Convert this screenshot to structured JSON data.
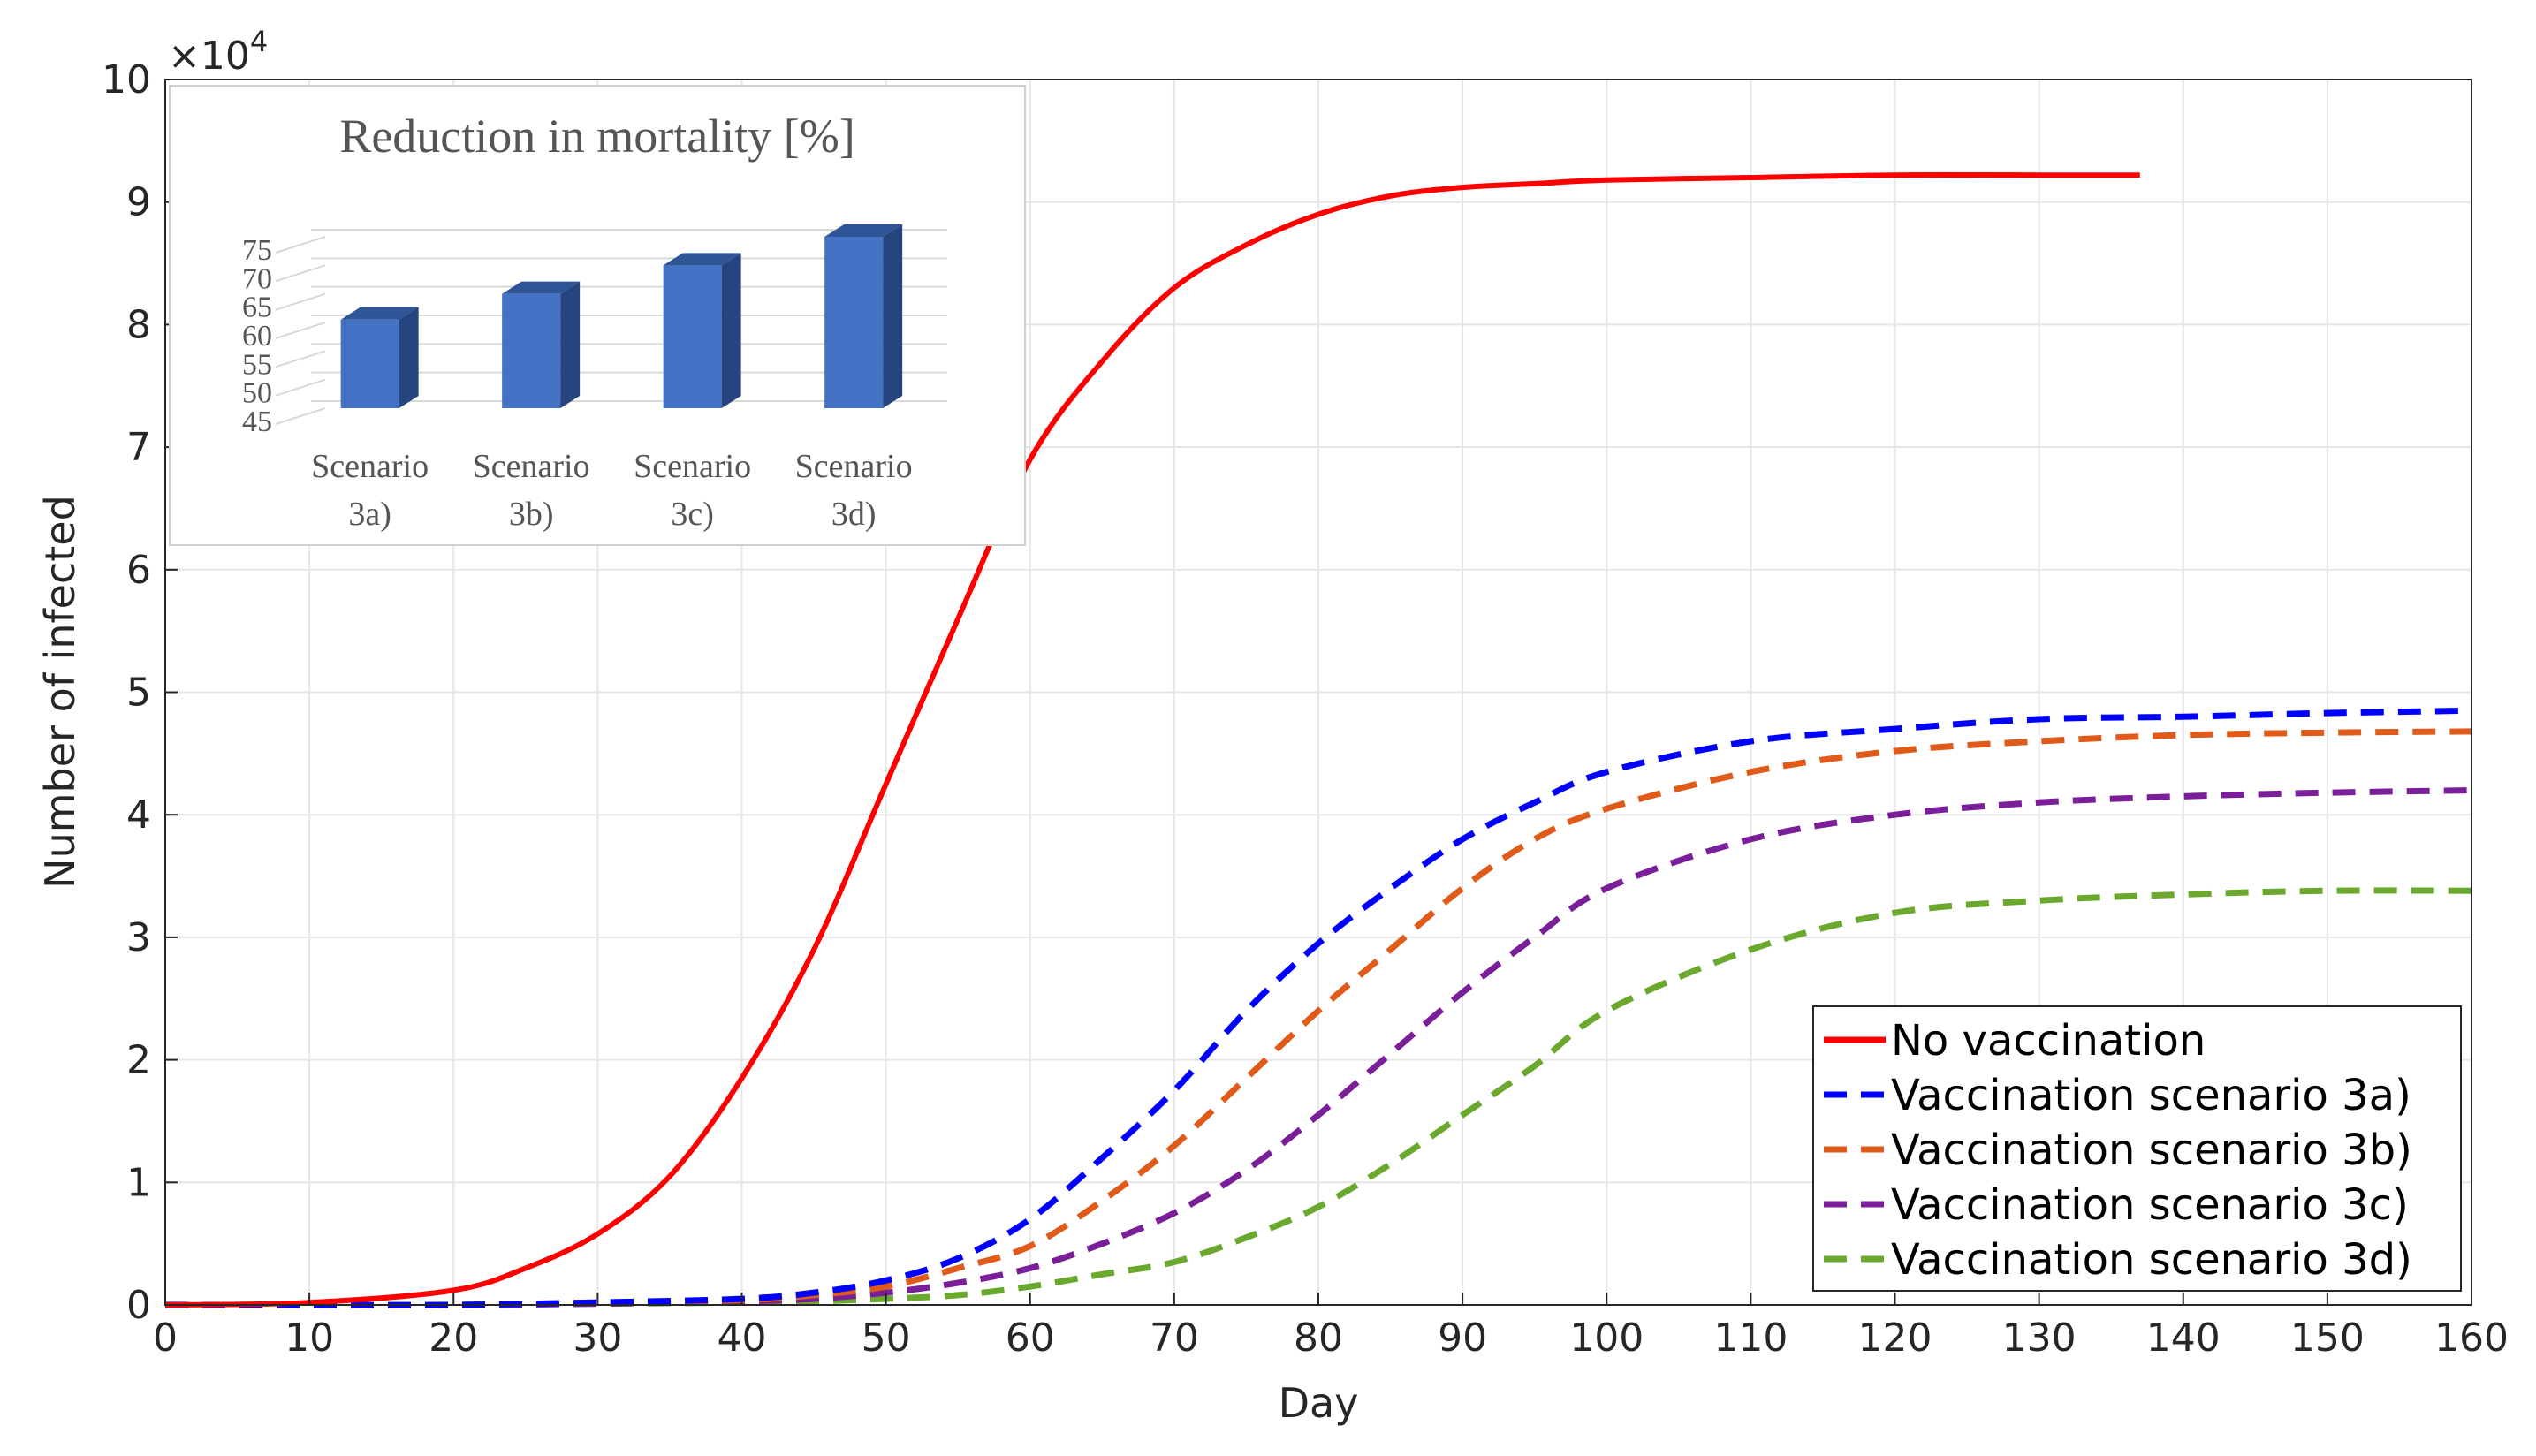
{
  "chart_data": [
    {
      "type": "line",
      "xlabel": "Day",
      "ylabel": "Number of infected",
      "y_exponent_label": "×10",
      "y_exponent_power": "4",
      "xlim": [
        0,
        160
      ],
      "ylim": [
        0,
        10
      ],
      "x_ticks": [
        "0",
        "10",
        "20",
        "30",
        "40",
        "50",
        "60",
        "70",
        "80",
        "90",
        "100",
        "110",
        "120",
        "130",
        "140",
        "150",
        "160"
      ],
      "y_ticks": [
        "0",
        "1",
        "2",
        "3",
        "4",
        "5",
        "6",
        "7",
        "8",
        "9",
        "10"
      ],
      "grid": true,
      "legend_position": "bottom-right",
      "series": [
        {
          "name": "No vaccination",
          "color": "#ff0000",
          "style": "solid",
          "x": [
            0,
            10,
            20,
            25,
            30,
            35,
            40,
            45,
            50,
            55,
            60,
            65,
            70,
            75,
            80,
            85,
            90,
            95,
            100,
            110,
            120,
            130,
            137
          ],
          "y": [
            0,
            0.02,
            0.12,
            0.3,
            0.58,
            1.05,
            1.85,
            2.9,
            4.25,
            5.6,
            6.9,
            7.7,
            8.3,
            8.65,
            8.9,
            9.05,
            9.12,
            9.15,
            9.18,
            9.2,
            9.22,
            9.22,
            9.22
          ]
        },
        {
          "name": "Vaccination scenario 3a)",
          "color": "#0000ff",
          "style": "dashed",
          "x": [
            0,
            10,
            20,
            30,
            40,
            45,
            50,
            55,
            60,
            65,
            70,
            75,
            80,
            85,
            90,
            95,
            100,
            110,
            120,
            130,
            140,
            150,
            160
          ],
          "y": [
            0,
            0,
            0,
            0.02,
            0.05,
            0.1,
            0.2,
            0.38,
            0.7,
            1.2,
            1.75,
            2.4,
            2.95,
            3.4,
            3.8,
            4.1,
            4.35,
            4.6,
            4.7,
            4.78,
            4.8,
            4.83,
            4.85
          ]
        },
        {
          "name": "Vaccination scenario 3b)",
          "color": "#e05a1a",
          "style": "dashed",
          "x": [
            0,
            10,
            20,
            30,
            40,
            45,
            50,
            55,
            60,
            65,
            70,
            75,
            80,
            85,
            90,
            95,
            100,
            110,
            120,
            130,
            140,
            150,
            160
          ],
          "y": [
            0,
            0,
            0,
            0.02,
            0.04,
            0.08,
            0.15,
            0.3,
            0.48,
            0.85,
            1.3,
            1.85,
            2.4,
            2.9,
            3.4,
            3.8,
            4.05,
            4.35,
            4.52,
            4.6,
            4.65,
            4.67,
            4.68
          ]
        },
        {
          "name": "Vaccination scenario 3c)",
          "color": "#7a1f99",
          "style": "dashed",
          "x": [
            0,
            10,
            20,
            30,
            40,
            45,
            50,
            55,
            60,
            65,
            70,
            75,
            80,
            85,
            90,
            95,
            100,
            110,
            120,
            130,
            140,
            150,
            160
          ],
          "y": [
            0,
            0,
            0,
            0.01,
            0.03,
            0.05,
            0.1,
            0.18,
            0.3,
            0.5,
            0.75,
            1.1,
            1.55,
            2.05,
            2.55,
            3.0,
            3.4,
            3.8,
            4.0,
            4.1,
            4.15,
            4.18,
            4.2
          ]
        },
        {
          "name": "Vaccination scenario 3d)",
          "color": "#6aa82e",
          "style": "dashed",
          "x": [
            0,
            10,
            20,
            30,
            40,
            45,
            50,
            55,
            60,
            65,
            70,
            75,
            80,
            85,
            90,
            95,
            100,
            110,
            120,
            130,
            140,
            150,
            160
          ],
          "y": [
            0,
            0,
            0,
            0.01,
            0.02,
            0.03,
            0.05,
            0.08,
            0.15,
            0.25,
            0.35,
            0.55,
            0.8,
            1.15,
            1.55,
            1.95,
            2.4,
            2.9,
            3.2,
            3.3,
            3.35,
            3.38,
            3.38
          ]
        }
      ]
    },
    {
      "type": "bar",
      "title": "Reduction in mortality [%]",
      "categories": [
        {
          "line1": "Scenario",
          "line2": "3a)"
        },
        {
          "line1": "Scenario",
          "line2": "3b)"
        },
        {
          "line1": "Scenario",
          "line2": "3c)"
        },
        {
          "line1": "Scenario",
          "line2": "3d)"
        }
      ],
      "values": [
        60.5,
        65,
        70,
        75
      ],
      "ylim": [
        45,
        75
      ],
      "y_ticks": [
        "45",
        "50",
        "55",
        "60",
        "65",
        "70",
        "75"
      ],
      "bar_color": "#4472c4",
      "grid": true
    }
  ]
}
